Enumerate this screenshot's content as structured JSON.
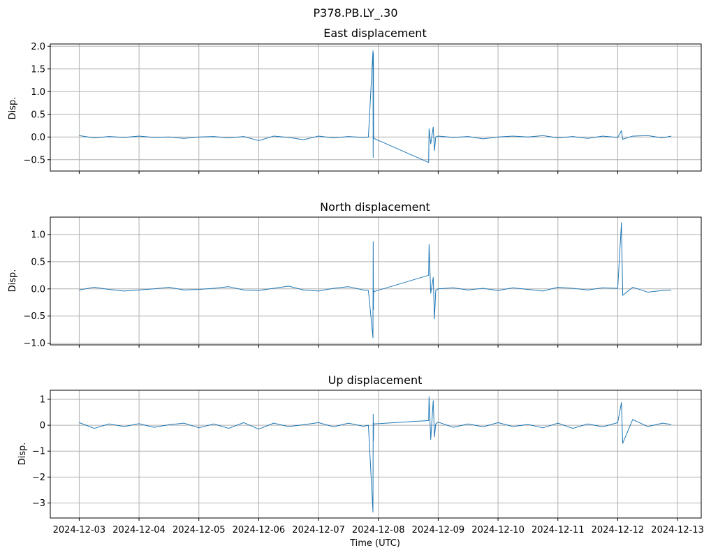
{
  "suptitle": "P378.PB.LY_.30",
  "xlabel": "Time (UTC)",
  "series_color": "#1f77b4",
  "chart_data": [
    {
      "type": "line",
      "title": "East displacement",
      "ylabel": "Disp.",
      "xlim": [
        "2024-12-02T12:24",
        "2024-12-13T09:30"
      ],
      "ylim": [
        -0.75,
        2.05
      ],
      "yticks": [
        "−0.5",
        "0.0",
        "0.5",
        "1.0",
        "1.5",
        "2.0"
      ],
      "ytick_values": [
        -0.5,
        0.0,
        0.5,
        1.0,
        1.5,
        2.0
      ],
      "grid": true,
      "x": [
        "2024-12-03T00:00",
        "2024-12-03T06:00",
        "2024-12-03T12:00",
        "2024-12-03T18:00",
        "2024-12-04T00:00",
        "2024-12-04T06:00",
        "2024-12-04T12:00",
        "2024-12-04T18:00",
        "2024-12-05T00:00",
        "2024-12-05T06:00",
        "2024-12-05T12:00",
        "2024-12-05T18:00",
        "2024-12-06T00:00",
        "2024-12-06T06:00",
        "2024-12-06T12:00",
        "2024-12-06T18:00",
        "2024-12-07T00:00",
        "2024-12-07T06:00",
        "2024-12-07T12:00",
        "2024-12-07T18:00",
        "2024-12-07T20:00",
        "2024-12-07T21:50",
        "2024-12-07T21:55",
        "2024-12-07T22:00",
        "2024-12-07T22:05",
        "2024-12-07T22:10",
        "2024-12-08T20:10",
        "2024-12-08T20:20",
        "2024-12-08T21:00",
        "2024-12-08T22:00",
        "2024-12-08T22:30",
        "2024-12-08T23:00",
        "2024-12-09T00:00",
        "2024-12-09T06:00",
        "2024-12-09T12:00",
        "2024-12-09T18:00",
        "2024-12-10T00:00",
        "2024-12-10T06:00",
        "2024-12-10T12:00",
        "2024-12-10T18:00",
        "2024-12-11T00:00",
        "2024-12-11T06:00",
        "2024-12-11T12:00",
        "2024-12-11T18:00",
        "2024-12-12T00:00",
        "2024-12-12T01:30",
        "2024-12-12T02:00",
        "2024-12-12T06:00",
        "2024-12-12T12:00",
        "2024-12-12T18:00",
        "2024-12-12T21:30"
      ],
      "y": [
        0.03,
        -0.02,
        0.01,
        -0.01,
        0.02,
        -0.01,
        0.0,
        -0.03,
        0.0,
        0.01,
        -0.02,
        0.01,
        -0.08,
        0.02,
        -0.01,
        -0.06,
        0.02,
        -0.02,
        0.01,
        -0.01,
        0.0,
        1.9,
        -0.45,
        1.85,
        0.05,
        -0.03,
        -0.56,
        0.18,
        -0.15,
        0.22,
        -0.3,
        0.0,
        0.02,
        -0.01,
        0.01,
        -0.04,
        0.0,
        0.02,
        0.0,
        0.03,
        -0.02,
        0.01,
        -0.03,
        0.02,
        -0.01,
        0.14,
        -0.05,
        0.02,
        0.03,
        -0.02,
        0.02
      ]
    },
    {
      "type": "line",
      "title": "North displacement",
      "ylabel": "Disp.",
      "xlim": [
        "2024-12-02T12:24",
        "2024-12-13T09:30"
      ],
      "ylim": [
        -1.03,
        1.32
      ],
      "yticks": [
        "−1.0",
        "−0.5",
        "0.0",
        "0.5",
        "1.0"
      ],
      "ytick_values": [
        -1.0,
        -0.5,
        0.0,
        0.5,
        1.0
      ],
      "grid": true,
      "x": [
        "2024-12-03T00:00",
        "2024-12-03T06:00",
        "2024-12-03T12:00",
        "2024-12-03T18:00",
        "2024-12-04T00:00",
        "2024-12-04T06:00",
        "2024-12-04T12:00",
        "2024-12-04T18:00",
        "2024-12-05T00:00",
        "2024-12-05T06:00",
        "2024-12-05T12:00",
        "2024-12-05T18:00",
        "2024-12-06T00:00",
        "2024-12-06T06:00",
        "2024-12-06T12:00",
        "2024-12-06T18:00",
        "2024-12-07T00:00",
        "2024-12-07T06:00",
        "2024-12-07T12:00",
        "2024-12-07T18:00",
        "2024-12-07T20:00",
        "2024-12-07T21:50",
        "2024-12-07T21:55",
        "2024-12-07T22:00",
        "2024-12-07T22:05",
        "2024-12-07T22:10",
        "2024-12-08T20:10",
        "2024-12-08T20:20",
        "2024-12-08T21:00",
        "2024-12-08T22:00",
        "2024-12-08T22:30",
        "2024-12-08T23:00",
        "2024-12-09T00:00",
        "2024-12-09T06:00",
        "2024-12-09T12:00",
        "2024-12-09T18:00",
        "2024-12-10T00:00",
        "2024-12-10T06:00",
        "2024-12-10T12:00",
        "2024-12-10T18:00",
        "2024-12-11T00:00",
        "2024-12-11T06:00",
        "2024-12-11T12:00",
        "2024-12-11T18:00",
        "2024-12-12T00:00",
        "2024-12-12T01:30",
        "2024-12-12T02:00",
        "2024-12-12T06:00",
        "2024-12-12T12:00",
        "2024-12-12T18:00",
        "2024-12-12T21:30"
      ],
      "y": [
        -0.02,
        0.03,
        -0.01,
        -0.04,
        -0.02,
        0.0,
        0.03,
        -0.02,
        -0.01,
        0.01,
        0.04,
        -0.02,
        -0.03,
        0.01,
        0.05,
        -0.02,
        -0.04,
        0.01,
        0.04,
        -0.02,
        -0.03,
        -0.9,
        0.87,
        -0.38,
        -0.02,
        -0.05,
        0.25,
        0.82,
        -0.08,
        0.21,
        -0.55,
        -0.03,
        0.0,
        0.02,
        -0.02,
        0.01,
        -0.03,
        0.02,
        -0.01,
        -0.04,
        0.03,
        0.01,
        -0.02,
        0.02,
        0.01,
        1.22,
        -0.12,
        0.03,
        -0.06,
        -0.03,
        -0.02
      ]
    },
    {
      "type": "line",
      "title": "Up displacement",
      "ylabel": "Disp.",
      "xlim": [
        "2024-12-02T12:24",
        "2024-12-13T09:30"
      ],
      "ylim": [
        -3.58,
        1.35
      ],
      "yticks": [
        "−3",
        "−2",
        "−1",
        "0",
        "1"
      ],
      "ytick_values": [
        -3,
        -2,
        -1,
        0,
        1
      ],
      "grid": true,
      "x": [
        "2024-12-03T00:00",
        "2024-12-03T06:00",
        "2024-12-03T12:00",
        "2024-12-03T18:00",
        "2024-12-04T00:00",
        "2024-12-04T06:00",
        "2024-12-04T12:00",
        "2024-12-04T18:00",
        "2024-12-05T00:00",
        "2024-12-05T06:00",
        "2024-12-05T12:00",
        "2024-12-05T18:00",
        "2024-12-06T00:00",
        "2024-12-06T06:00",
        "2024-12-06T12:00",
        "2024-12-06T18:00",
        "2024-12-07T00:00",
        "2024-12-07T06:00",
        "2024-12-07T12:00",
        "2024-12-07T18:00",
        "2024-12-07T20:00",
        "2024-12-07T21:50",
        "2024-12-07T21:55",
        "2024-12-07T22:00",
        "2024-12-07T22:05",
        "2024-12-07T22:10",
        "2024-12-08T20:10",
        "2024-12-08T20:20",
        "2024-12-08T21:00",
        "2024-12-08T22:00",
        "2024-12-08T22:30",
        "2024-12-08T23:00",
        "2024-12-09T00:00",
        "2024-12-09T06:00",
        "2024-12-09T12:00",
        "2024-12-09T18:00",
        "2024-12-10T00:00",
        "2024-12-10T06:00",
        "2024-12-10T12:00",
        "2024-12-10T18:00",
        "2024-12-11T00:00",
        "2024-12-11T06:00",
        "2024-12-11T12:00",
        "2024-12-11T18:00",
        "2024-12-12T00:00",
        "2024-12-12T01:30",
        "2024-12-12T02:00",
        "2024-12-12T06:00",
        "2024-12-12T12:00",
        "2024-12-12T18:00",
        "2024-12-12T21:30"
      ],
      "y": [
        0.1,
        -0.12,
        0.05,
        -0.05,
        0.06,
        -0.08,
        0.02,
        0.08,
        -0.1,
        0.05,
        -0.12,
        0.1,
        -0.15,
        0.08,
        -0.05,
        0.02,
        0.1,
        -0.06,
        0.08,
        -0.04,
        0.0,
        -3.35,
        0.42,
        -0.6,
        0.08,
        0.05,
        0.18,
        1.1,
        -0.55,
        0.95,
        -0.45,
        0.05,
        0.12,
        -0.08,
        0.05,
        -0.06,
        0.1,
        -0.05,
        0.03,
        -0.1,
        0.08,
        -0.12,
        0.05,
        -0.06,
        0.1,
        0.88,
        -0.7,
        0.22,
        -0.05,
        0.08,
        0.03
      ]
    }
  ],
  "x_tick_labels": [
    "2024-12-03",
    "2024-12-04",
    "2024-12-05",
    "2024-12-06",
    "2024-12-07",
    "2024-12-08",
    "2024-12-09",
    "2024-12-10",
    "2024-12-11",
    "2024-12-12",
    "2024-12-13"
  ]
}
